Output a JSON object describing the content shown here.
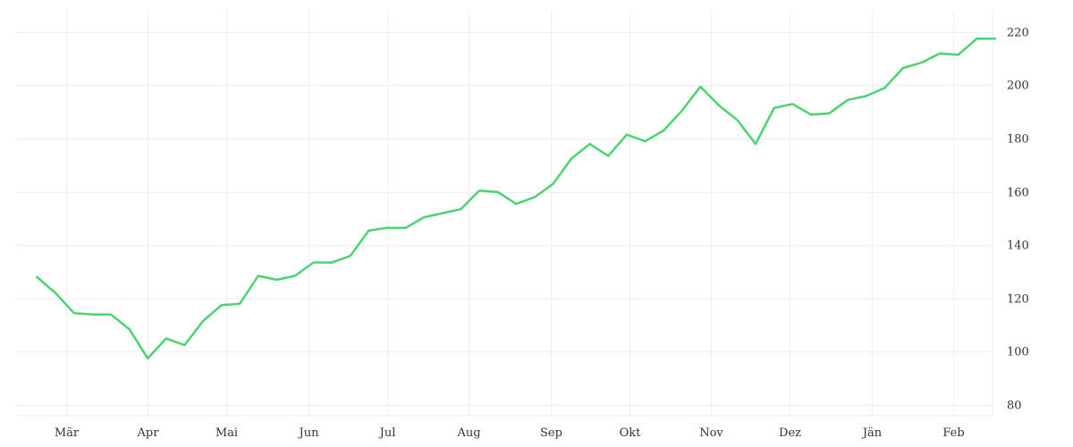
{
  "chart_data": {
    "type": "line",
    "title": "",
    "xlabel": "",
    "ylabel": "",
    "x_axis_type": "time",
    "x_tick_labels": [
      "Mär",
      "Apr",
      "Mai",
      "Jun",
      "Jul",
      "Aug",
      "Sep",
      "Okt",
      "Nov",
      "Dez",
      "Jän",
      "Feb"
    ],
    "x_tick_dates": [
      "2023-03-01",
      "2023-04-01",
      "2023-05-01",
      "2023-06-01",
      "2023-07-01",
      "2023-08-01",
      "2023-09-01",
      "2023-10-01",
      "2023-11-01",
      "2023-12-01",
      "2024-01-01",
      "2024-02-01"
    ],
    "x_range": [
      "2023-02-10",
      "2024-02-16"
    ],
    "y_axis_position": "right",
    "y_ticks": [
      80,
      100,
      120,
      140,
      160,
      180,
      200,
      220
    ],
    "ylim": [
      76,
      228
    ],
    "grid": true,
    "legend": false,
    "series_color": "#4cd272",
    "series": [
      {
        "x": [
          "2023-02-18",
          "2023-02-25",
          "2023-03-04",
          "2023-03-11",
          "2023-03-18",
          "2023-03-25",
          "2023-04-01",
          "2023-04-08",
          "2023-04-15",
          "2023-04-22",
          "2023-04-29",
          "2023-05-06",
          "2023-05-13",
          "2023-05-20",
          "2023-05-27",
          "2023-06-03",
          "2023-06-10",
          "2023-06-17",
          "2023-06-24",
          "2023-07-01",
          "2023-07-08",
          "2023-07-15",
          "2023-07-22",
          "2023-07-29",
          "2023-08-05",
          "2023-08-12",
          "2023-08-19",
          "2023-08-26",
          "2023-09-02",
          "2023-09-09",
          "2023-09-16",
          "2023-09-23",
          "2023-09-30",
          "2023-10-07",
          "2023-10-14",
          "2023-10-21",
          "2023-10-28",
          "2023-11-04",
          "2023-11-11",
          "2023-11-18",
          "2023-11-25",
          "2023-12-02",
          "2023-12-09",
          "2023-12-16",
          "2023-12-23",
          "2023-12-30",
          "2024-01-06",
          "2024-01-13",
          "2024-01-20",
          "2024-01-27",
          "2024-02-03",
          "2024-02-10",
          "2024-02-17"
        ],
        "values": [
          128,
          122,
          114.5,
          114,
          114,
          108.5,
          97.5,
          105,
          102.5,
          111.5,
          117.5,
          118,
          128.5,
          127,
          128.5,
          133.5,
          133.5,
          136,
          145.5,
          146.5,
          146.5,
          150.5,
          152,
          153.5,
          160.5,
          160,
          155.5,
          158,
          163,
          172.5,
          178,
          173.5,
          181.5,
          179,
          183,
          190.5,
          199.5,
          192.5,
          187,
          178,
          191.5,
          193,
          189,
          189.5,
          194.5,
          196,
          199,
          206.5,
          208.5,
          212,
          211.5,
          217.5,
          217.5
        ]
      }
    ]
  }
}
